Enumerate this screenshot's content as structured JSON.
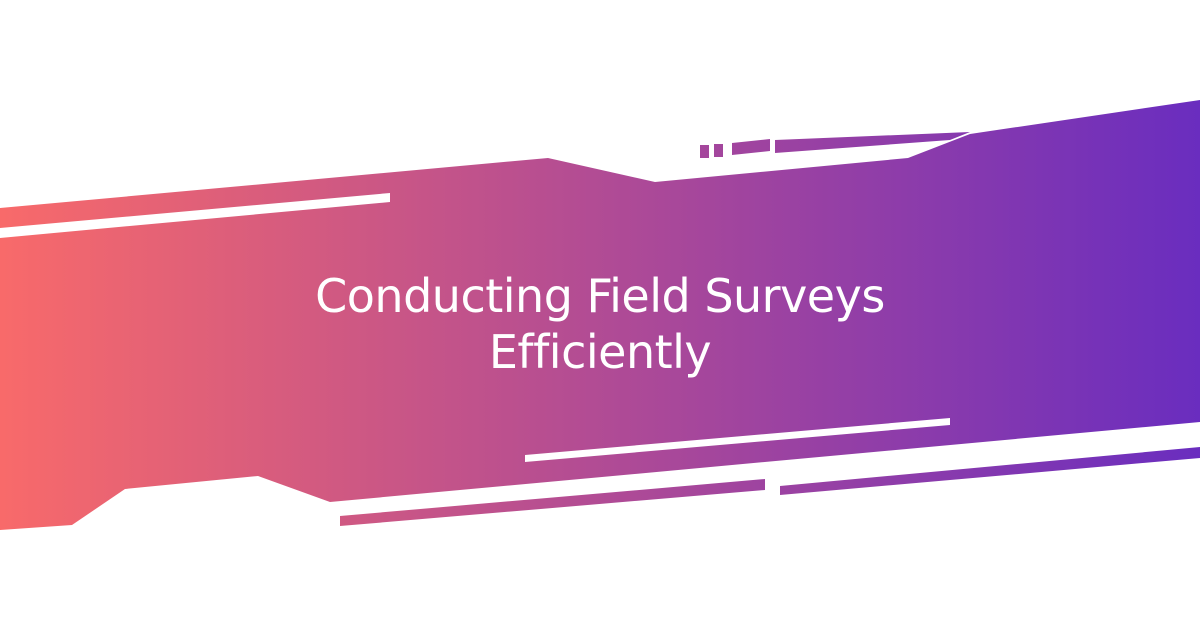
{
  "banner": {
    "title_line1": "Conducting Field Surveys",
    "title_line2": "Efficiently",
    "gradient_start": "#f86a6a",
    "gradient_end": "#6a2dbf",
    "background": "#ffffff"
  }
}
